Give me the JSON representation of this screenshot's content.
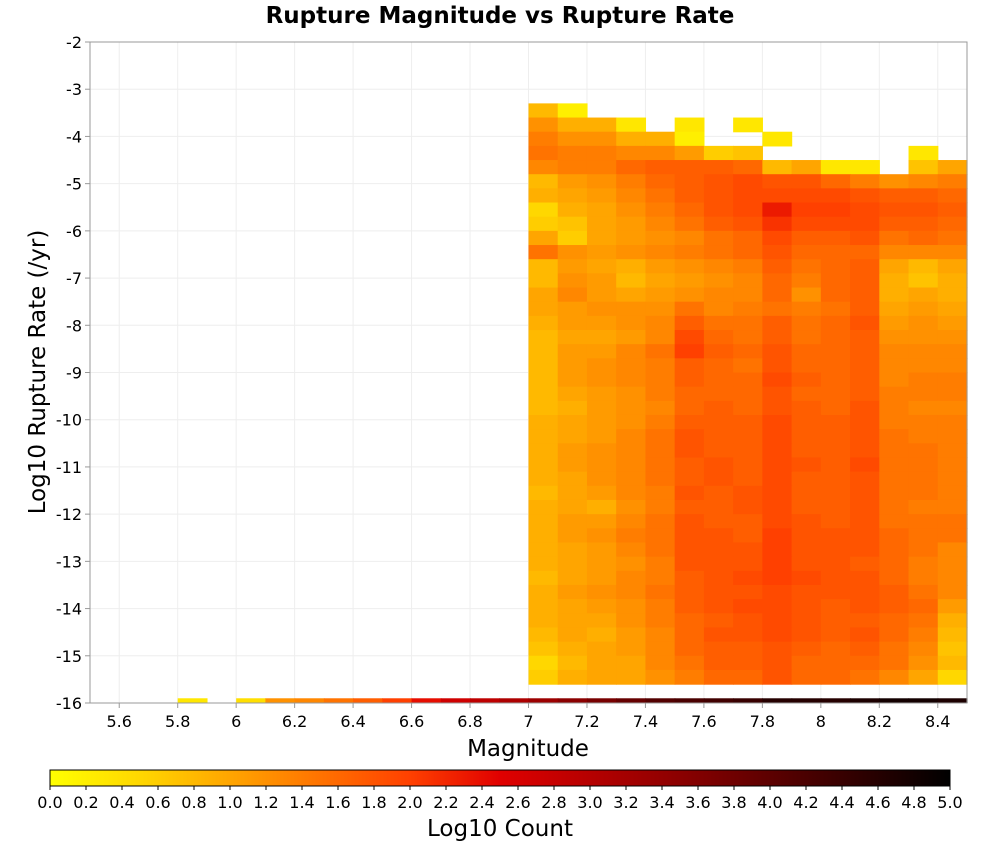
{
  "chart_data": {
    "type": "heatmap",
    "title": "Rupture Magnitude vs Rupture Rate",
    "xlabel": "Magnitude",
    "ylabel": "Log10 Rupture Rate (/yr)",
    "xlim": [
      5.5,
      8.5
    ],
    "ylim": [
      -16,
      -2
    ],
    "x_ticks": [
      "5.6",
      "5.8",
      "6",
      "6.2",
      "6.4",
      "6.6",
      "6.8",
      "7",
      "7.2",
      "7.4",
      "7.6",
      "7.8",
      "8",
      "8.2",
      "8.4"
    ],
    "y_ticks": [
      "-2",
      "-3",
      "-4",
      "-5",
      "-6",
      "-7",
      "-8",
      "-9",
      "-10",
      "-11",
      "-12",
      "-13",
      "-14",
      "-15",
      "-16"
    ],
    "x_bin_width": 0.1,
    "y_bin_height": 0.3,
    "x_bin_starts": [
      7.0,
      7.1,
      7.2,
      7.3,
      7.4,
      7.5,
      7.6,
      7.7,
      7.8,
      7.9,
      8.0,
      8.1,
      8.2,
      8.3,
      8.4
    ],
    "y_bin_starts": [
      -3.6,
      -3.9,
      -4.2,
      -4.5,
      -4.8,
      -5.1,
      -5.4,
      -5.7,
      -6.0,
      -6.3,
      -6.6,
      -6.9,
      -7.2,
      -7.5,
      -7.8,
      -8.1,
      -8.4,
      -8.7,
      -9.0,
      -9.3,
      -9.6,
      -9.9,
      -10.2,
      -10.5,
      -10.8,
      -11.1,
      -11.4,
      -11.7,
      -12.0,
      -12.3,
      -12.6,
      -12.9,
      -13.2,
      -13.5,
      -13.8,
      -14.1,
      -14.4,
      -14.7,
      -15.0,
      -15.3,
      -15.6
    ],
    "log10_count_grid": [
      [
        0.8,
        0.2,
        null,
        null,
        null,
        null,
        null,
        null,
        null,
        null,
        null,
        null,
        null,
        null,
        null
      ],
      [
        1.2,
        0.9,
        0.9,
        0.3,
        null,
        0.3,
        null,
        0.3,
        null,
        null,
        null,
        null,
        null,
        null,
        null
      ],
      [
        1.4,
        1.2,
        1.2,
        0.9,
        0.9,
        0.2,
        null,
        null,
        0.3,
        null,
        null,
        null,
        null,
        null,
        null
      ],
      [
        1.5,
        1.4,
        1.4,
        1.3,
        1.3,
        1.1,
        0.6,
        0.7,
        null,
        null,
        null,
        null,
        null,
        0.3,
        null
      ],
      [
        1.3,
        1.4,
        1.4,
        1.6,
        1.7,
        1.7,
        1.7,
        1.6,
        0.8,
        1.0,
        0.3,
        0.3,
        null,
        0.7,
        1.0
      ],
      [
        0.8,
        1.1,
        1.2,
        1.4,
        1.6,
        1.7,
        1.8,
        1.9,
        1.8,
        1.8,
        1.6,
        1.4,
        1.2,
        1.3,
        1.4
      ],
      [
        0.9,
        1.0,
        1.1,
        1.3,
        1.5,
        1.7,
        1.8,
        1.9,
        1.9,
        1.9,
        1.9,
        1.8,
        1.7,
        1.7,
        1.6
      ],
      [
        0.5,
        0.9,
        1.0,
        1.2,
        1.4,
        1.6,
        1.8,
        1.9,
        2.3,
        2.0,
        2.0,
        1.9,
        1.8,
        1.8,
        1.7
      ],
      [
        0.6,
        0.7,
        1.0,
        1.1,
        1.3,
        1.5,
        1.7,
        1.8,
        2.1,
        1.9,
        1.9,
        1.9,
        1.7,
        1.7,
        1.6
      ],
      [
        1.0,
        0.6,
        1.0,
        1.1,
        1.2,
        1.3,
        1.5,
        1.6,
        1.9,
        1.7,
        1.7,
        1.8,
        1.5,
        1.6,
        1.5
      ],
      [
        1.5,
        1.2,
        1.1,
        1.2,
        1.3,
        1.4,
        1.5,
        1.6,
        1.8,
        1.6,
        1.6,
        1.6,
        1.3,
        1.3,
        1.3
      ],
      [
        0.8,
        1.1,
        1.0,
        0.9,
        1.1,
        1.2,
        1.3,
        1.4,
        1.7,
        1.5,
        1.6,
        1.7,
        1.0,
        0.8,
        1.0
      ],
      [
        0.8,
        1.2,
        1.1,
        0.8,
        1.0,
        1.1,
        1.2,
        1.3,
        1.6,
        1.4,
        1.6,
        1.7,
        0.9,
        0.7,
        0.9
      ],
      [
        1.0,
        1.3,
        1.1,
        1.0,
        1.1,
        1.2,
        1.3,
        1.3,
        1.6,
        1.2,
        1.6,
        1.7,
        0.9,
        1.0,
        0.9
      ],
      [
        1.0,
        1.1,
        1.2,
        1.2,
        1.2,
        1.5,
        1.3,
        1.4,
        1.5,
        1.4,
        1.5,
        1.7,
        1.0,
        1.1,
        1.0
      ],
      [
        0.9,
        1.1,
        1.1,
        1.2,
        1.3,
        1.7,
        1.5,
        1.5,
        1.7,
        1.5,
        1.6,
        1.8,
        1.1,
        1.2,
        1.1
      ],
      [
        0.8,
        1.0,
        1.0,
        1.1,
        1.3,
        1.9,
        1.6,
        1.5,
        1.7,
        1.5,
        1.6,
        1.7,
        1.2,
        1.2,
        1.2
      ],
      [
        0.8,
        1.1,
        1.1,
        1.3,
        1.5,
        2.0,
        1.7,
        1.6,
        1.8,
        1.6,
        1.6,
        1.7,
        1.3,
        1.3,
        1.3
      ],
      [
        0.8,
        1.1,
        1.2,
        1.3,
        1.4,
        1.7,
        1.6,
        1.5,
        1.8,
        1.6,
        1.6,
        1.7,
        1.3,
        1.3,
        1.3
      ],
      [
        0.8,
        1.1,
        1.2,
        1.3,
        1.4,
        1.7,
        1.6,
        1.6,
        1.9,
        1.7,
        1.6,
        1.7,
        1.3,
        1.4,
        1.4
      ],
      [
        0.8,
        1.0,
        1.1,
        1.2,
        1.4,
        1.6,
        1.6,
        1.6,
        1.8,
        1.6,
        1.6,
        1.7,
        1.4,
        1.4,
        1.4
      ],
      [
        0.8,
        0.9,
        1.1,
        1.2,
        1.3,
        1.6,
        1.7,
        1.6,
        1.8,
        1.7,
        1.6,
        1.8,
        1.4,
        1.3,
        1.3
      ],
      [
        0.9,
        1.0,
        1.1,
        1.2,
        1.4,
        1.7,
        1.7,
        1.7,
        1.9,
        1.7,
        1.7,
        1.8,
        1.4,
        1.4,
        1.4
      ],
      [
        0.9,
        1.0,
        1.1,
        1.3,
        1.5,
        1.8,
        1.7,
        1.7,
        1.9,
        1.7,
        1.7,
        1.8,
        1.5,
        1.4,
        1.4
      ],
      [
        0.9,
        1.1,
        1.2,
        1.3,
        1.5,
        1.8,
        1.7,
        1.7,
        1.9,
        1.7,
        1.7,
        1.8,
        1.5,
        1.5,
        1.4
      ],
      [
        0.9,
        1.1,
        1.2,
        1.3,
        1.5,
        1.7,
        1.8,
        1.7,
        1.9,
        1.8,
        1.7,
        1.9,
        1.5,
        1.5,
        1.4
      ],
      [
        0.9,
        1.0,
        1.2,
        1.3,
        1.5,
        1.7,
        1.8,
        1.7,
        1.9,
        1.7,
        1.7,
        1.8,
        1.5,
        1.5,
        1.4
      ],
      [
        0.8,
        1.0,
        1.1,
        1.3,
        1.4,
        1.8,
        1.7,
        1.8,
        1.9,
        1.7,
        1.7,
        1.8,
        1.5,
        1.5,
        1.4
      ],
      [
        0.9,
        1.0,
        0.9,
        1.2,
        1.4,
        1.7,
        1.7,
        1.8,
        1.9,
        1.7,
        1.7,
        1.8,
        1.5,
        1.4,
        1.4
      ],
      [
        0.9,
        1.1,
        1.1,
        1.3,
        1.5,
        1.8,
        1.7,
        1.7,
        1.9,
        1.8,
        1.7,
        1.8,
        1.5,
        1.5,
        1.5
      ],
      [
        0.9,
        1.1,
        1.2,
        1.4,
        1.5,
        1.8,
        1.8,
        1.7,
        2.0,
        1.8,
        1.8,
        1.8,
        1.6,
        1.5,
        1.5
      ],
      [
        0.9,
        1.0,
        1.1,
        1.3,
        1.5,
        1.8,
        1.8,
        1.8,
        2.0,
        1.8,
        1.8,
        1.8,
        1.6,
        1.5,
        1.3
      ],
      [
        0.9,
        1.0,
        1.1,
        1.2,
        1.4,
        1.8,
        1.8,
        1.8,
        2.0,
        1.8,
        1.8,
        1.7,
        1.6,
        1.4,
        1.3
      ],
      [
        0.8,
        1.0,
        1.1,
        1.3,
        1.4,
        1.7,
        1.8,
        1.9,
        2.0,
        1.9,
        1.8,
        1.8,
        1.6,
        1.4,
        1.3
      ],
      [
        0.9,
        1.1,
        1.2,
        1.3,
        1.5,
        1.7,
        1.8,
        1.8,
        1.9,
        1.8,
        1.8,
        1.8,
        1.7,
        1.5,
        1.3
      ],
      [
        0.9,
        1.0,
        1.1,
        1.2,
        1.4,
        1.7,
        1.8,
        1.9,
        1.9,
        1.8,
        1.7,
        1.8,
        1.7,
        1.6,
        1.1
      ],
      [
        0.9,
        1.0,
        1.0,
        1.2,
        1.4,
        1.6,
        1.7,
        1.8,
        1.9,
        1.8,
        1.7,
        1.7,
        1.6,
        1.5,
        0.9
      ],
      [
        0.8,
        1.0,
        0.9,
        1.1,
        1.3,
        1.6,
        1.8,
        1.8,
        1.9,
        1.8,
        1.7,
        1.8,
        1.6,
        1.4,
        0.8
      ],
      [
        0.7,
        0.9,
        1.0,
        1.1,
        1.3,
        1.6,
        1.7,
        1.7,
        1.8,
        1.7,
        1.6,
        1.7,
        1.5,
        1.3,
        0.7
      ],
      [
        0.5,
        0.8,
        1.0,
        1.0,
        1.3,
        1.5,
        1.7,
        1.7,
        1.8,
        1.6,
        1.6,
        1.6,
        1.5,
        1.2,
        0.8
      ],
      [
        0.6,
        0.9,
        1.0,
        1.0,
        1.2,
        1.4,
        1.6,
        1.6,
        1.8,
        1.6,
        1.6,
        1.5,
        1.3,
        1.0,
        0.5
      ]
    ],
    "bottom_row_bin": [
      -16.0,
      -15.9
    ],
    "bottom_row": [
      {
        "x": 5.8,
        "count": 0.3
      },
      {
        "x": 6.0,
        "count": 0.4
      },
      {
        "x": 6.1,
        "count": 1.2
      },
      {
        "x": 6.2,
        "count": 1.3
      },
      {
        "x": 6.3,
        "count": 1.5
      },
      {
        "x": 6.4,
        "count": 1.7
      },
      {
        "x": 6.5,
        "count": 2.0
      },
      {
        "x": 6.6,
        "count": 2.4
      },
      {
        "x": 6.7,
        "count": 2.7
      },
      {
        "x": 6.8,
        "count": 2.9
      },
      {
        "x": 6.9,
        "count": 3.1
      },
      {
        "x": 7.0,
        "count": 3.3
      },
      {
        "x": 7.1,
        "count": 3.5
      },
      {
        "x": 7.2,
        "count": 3.7
      },
      {
        "x": 7.3,
        "count": 3.9
      },
      {
        "x": 7.4,
        "count": 4.1
      },
      {
        "x": 7.5,
        "count": 4.2
      },
      {
        "x": 7.6,
        "count": 4.3
      },
      {
        "x": 7.7,
        "count": 4.4
      },
      {
        "x": 7.8,
        "count": 4.6
      },
      {
        "x": 7.9,
        "count": 4.6
      },
      {
        "x": 8.0,
        "count": 4.6
      },
      {
        "x": 8.1,
        "count": 4.7
      },
      {
        "x": 8.2,
        "count": 4.8
      },
      {
        "x": 8.3,
        "count": 4.8
      },
      {
        "x": 8.4,
        "count": 4.7
      }
    ],
    "colorbar": {
      "label": "Log10 Count",
      "range": [
        0.0,
        5.0
      ],
      "ticks": [
        "0.0",
        "0.2",
        "0.4",
        "0.6",
        "0.8",
        "1.0",
        "1.2",
        "1.4",
        "1.6",
        "1.8",
        "2.0",
        "2.2",
        "2.4",
        "2.6",
        "2.8",
        "3.0",
        "3.2",
        "3.4",
        "3.6",
        "3.8",
        "4.0",
        "4.2",
        "4.4",
        "4.6",
        "4.8",
        "5.0"
      ],
      "colormap": [
        {
          "v": 0.0,
          "color": "#ffff00"
        },
        {
          "v": 0.5,
          "color": "#ffd700"
        },
        {
          "v": 1.0,
          "color": "#ffa500"
        },
        {
          "v": 2.0,
          "color": "#ff4000"
        },
        {
          "v": 2.5,
          "color": "#e00000"
        },
        {
          "v": 3.5,
          "color": "#8b0000"
        },
        {
          "v": 5.0,
          "color": "#000000"
        }
      ]
    },
    "grid": true
  }
}
